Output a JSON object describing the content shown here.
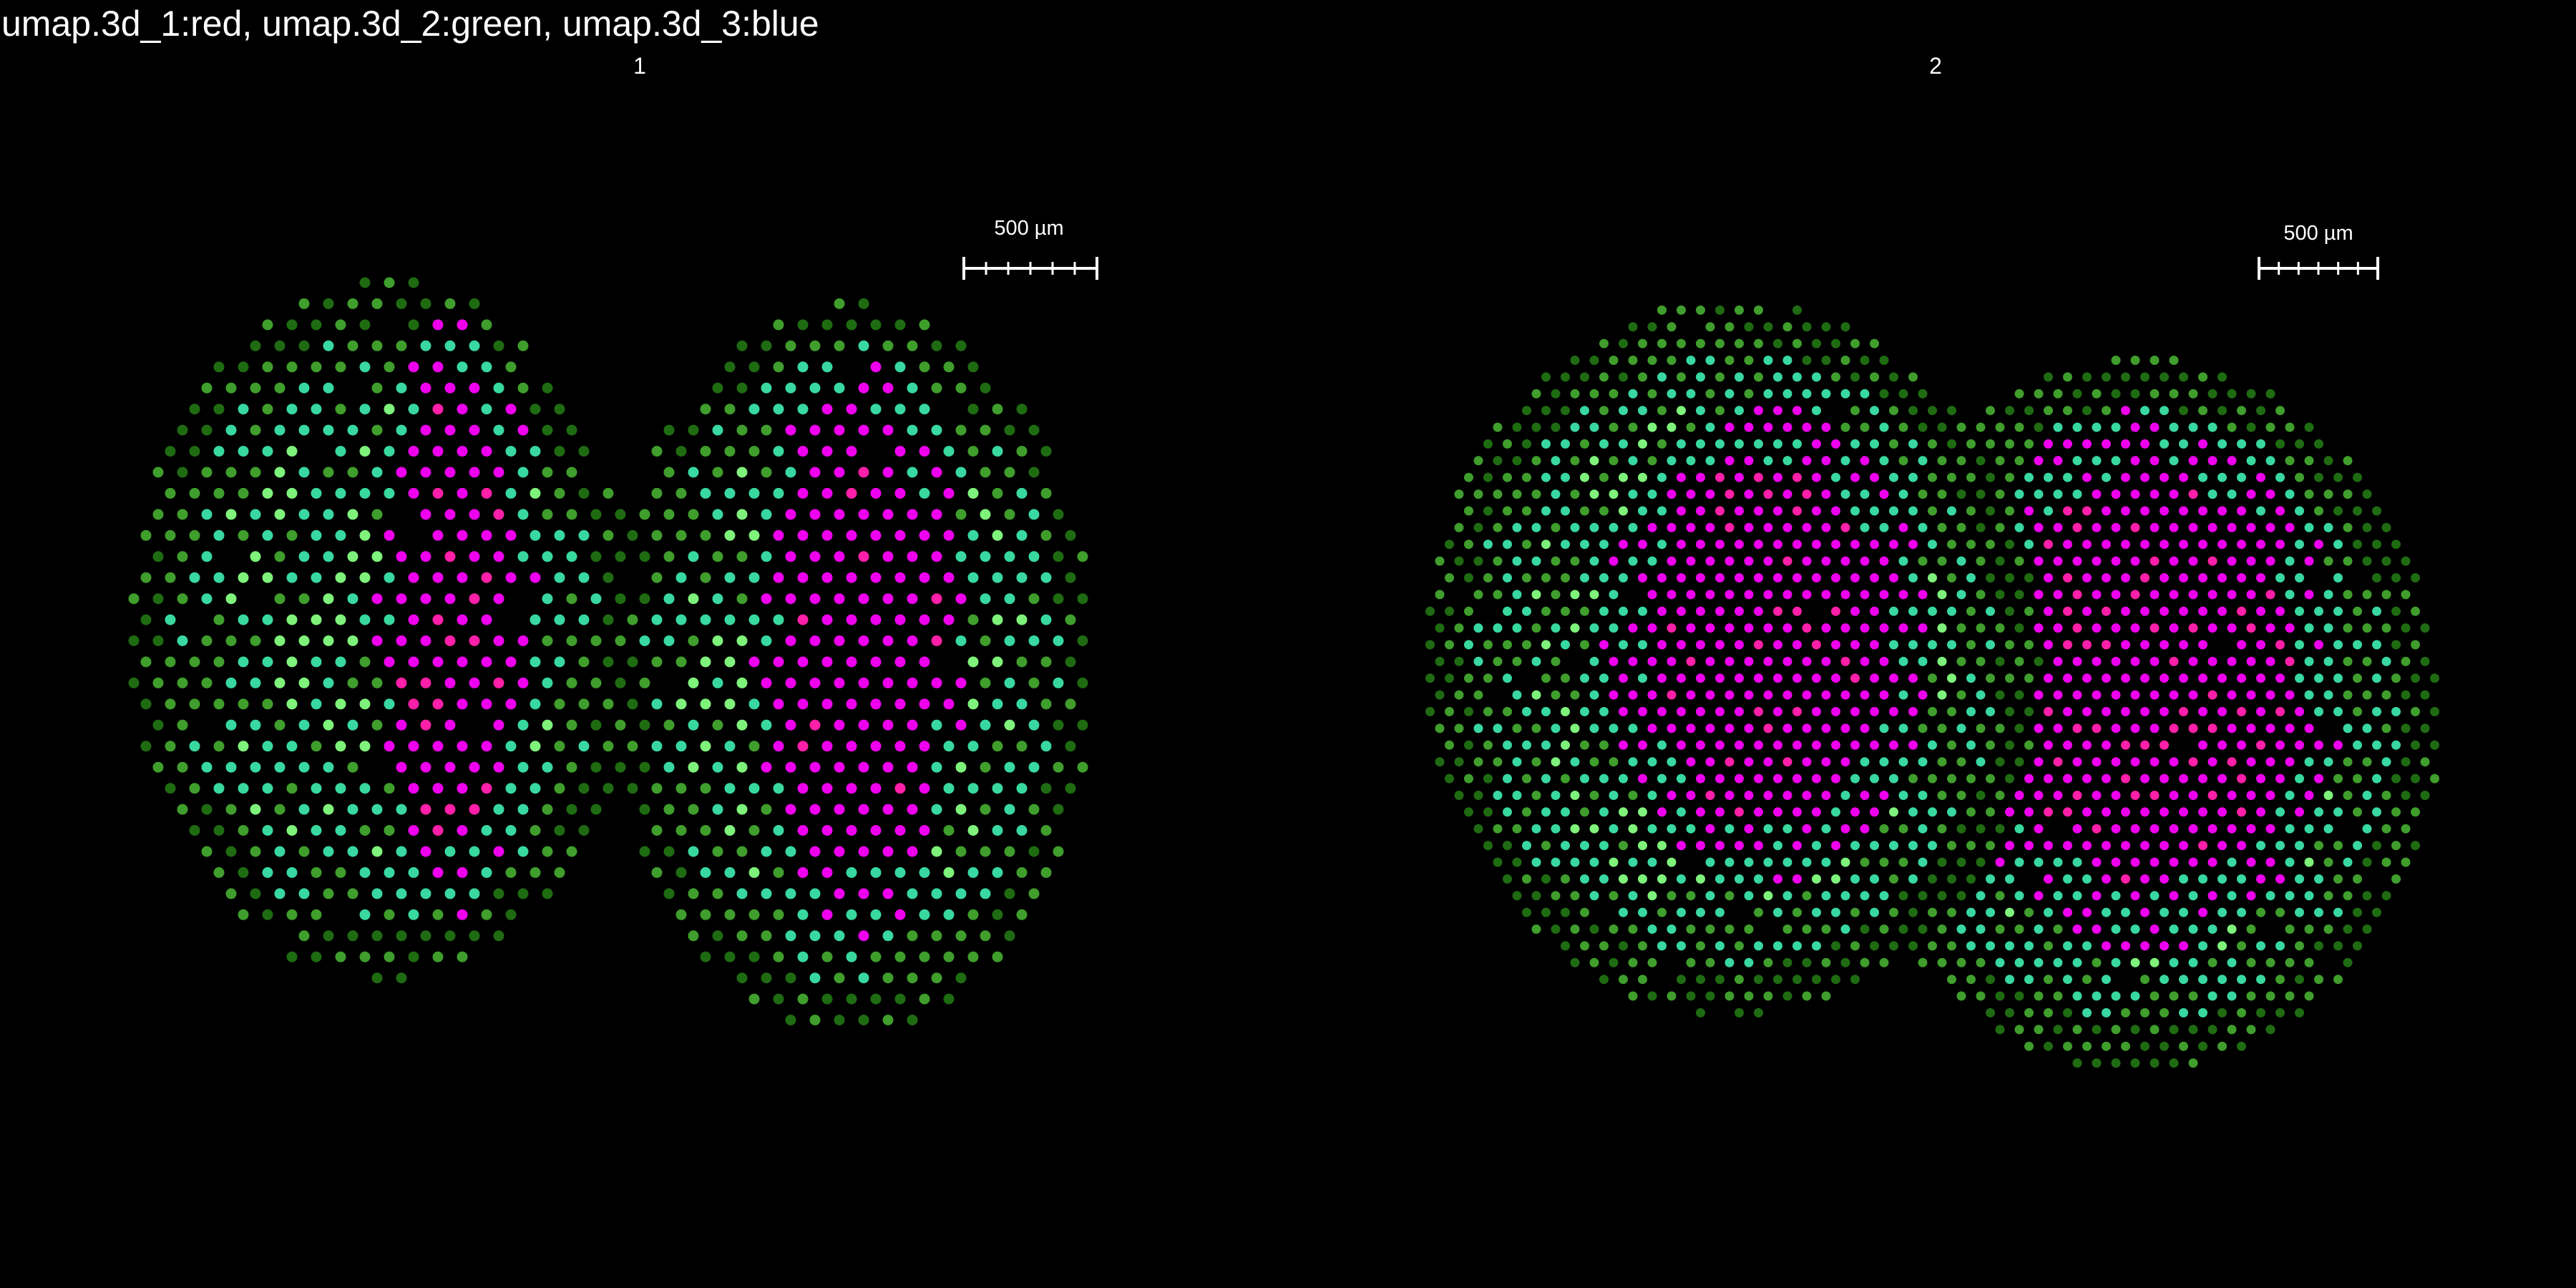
{
  "title": "umap.3d_1:red, umap.3d_2:green, umap.3d_3:blue",
  "panels": [
    {
      "label": "1",
      "scalebar_label": "500 µm"
    },
    {
      "label": "2",
      "scalebar_label": "500 µm"
    }
  ],
  "chart_data": {
    "type": "scatter",
    "description": "Spatial spot plot, spots coloured by RGB mixture of three UMAP dimensions",
    "channels": {
      "red": "umap.3d_1",
      "green": "umap.3d_2",
      "blue": "umap.3d_3"
    },
    "background": "#000000",
    "palette": {
      "dark_green": "#1f6b12",
      "mid_green": "#3f9e2c",
      "light_green": "#7ef27a",
      "teal": "#38d8a0",
      "magenta": "#ee00ee",
      "pink_magenta": "#ff1fa8"
    },
    "facets": [
      "1",
      "2"
    ],
    "scalebar_um": 500
  }
}
